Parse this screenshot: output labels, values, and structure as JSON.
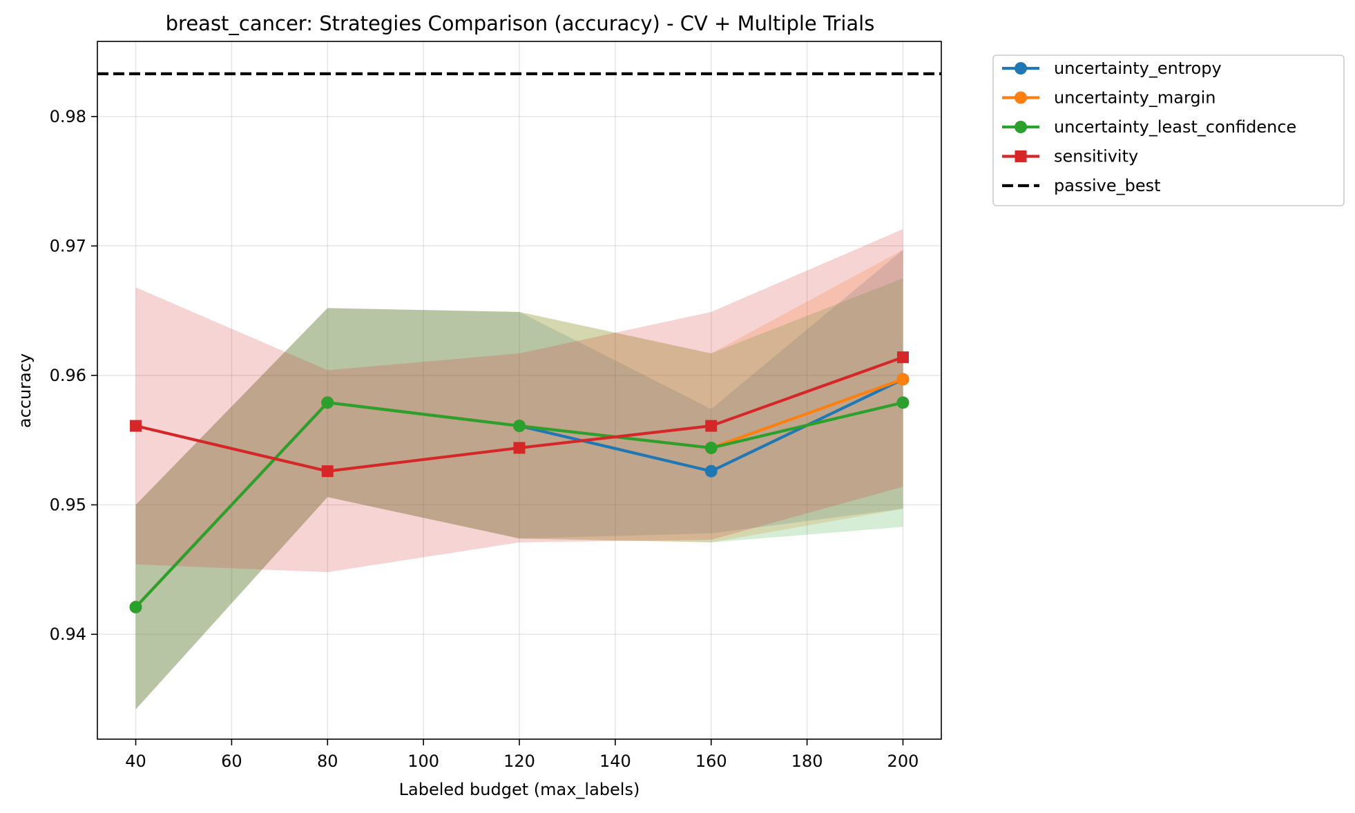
{
  "chart_data": {
    "type": "line",
    "title": "breast_cancer: Strategies Comparison (accuracy) - CV + Multiple Trials",
    "xlabel": "Labeled budget (max_labels)",
    "ylabel": "accuracy",
    "xlim": [
      32,
      208
    ],
    "ylim": [
      0.9319,
      0.9858
    ],
    "xticks": [
      40,
      60,
      80,
      100,
      120,
      140,
      160,
      180,
      200
    ],
    "yticks": [
      0.94,
      0.95,
      0.96,
      0.97,
      0.98
    ],
    "ytick_labels": [
      "0.94",
      "0.95",
      "0.96",
      "0.97",
      "0.98"
    ],
    "grid": true,
    "legend_position": "outside-top-right",
    "x": [
      40,
      80,
      120,
      160,
      200
    ],
    "series": [
      {
        "name": "uncertainty_entropy",
        "color": "#1f77b4",
        "marker": "circle",
        "values": [
          0.9421,
          0.9579,
          0.9561,
          0.9526,
          0.9597
        ],
        "band_upper": [
          0.95,
          0.9652,
          0.9649,
          0.9574,
          0.9697
        ],
        "band_lower": [
          0.9342,
          0.9506,
          0.9474,
          0.9478,
          0.9497
        ]
      },
      {
        "name": "uncertainty_margin",
        "color": "#ff7f0e",
        "marker": "circle",
        "values": [
          0.9421,
          0.9579,
          0.9561,
          0.9544,
          0.9597
        ],
        "band_upper": [
          0.95,
          0.9652,
          0.9649,
          0.9617,
          0.9697
        ],
        "band_lower": [
          0.9342,
          0.9506,
          0.9474,
          0.9471,
          0.9497
        ]
      },
      {
        "name": "uncertainty_least_confidence",
        "color": "#2ca02c",
        "marker": "circle",
        "values": [
          0.9421,
          0.9579,
          0.9561,
          0.9544,
          0.9579
        ],
        "band_upper": [
          0.95,
          0.9652,
          0.9649,
          0.9617,
          0.9675
        ],
        "band_lower": [
          0.9342,
          0.9506,
          0.9474,
          0.9471,
          0.9483
        ]
      },
      {
        "name": "sensitivity",
        "color": "#d62728",
        "marker": "square",
        "values": [
          0.9561,
          0.9526,
          0.9544,
          0.9561,
          0.9614
        ],
        "band_upper": [
          0.9668,
          0.9604,
          0.9617,
          0.9649,
          0.9713
        ],
        "band_lower": [
          0.9454,
          0.9448,
          0.9471,
          0.9473,
          0.9514
        ]
      }
    ],
    "reference_lines": [
      {
        "name": "passive_best",
        "color": "#000000",
        "style": "dashed",
        "value": 0.9833
      }
    ]
  }
}
